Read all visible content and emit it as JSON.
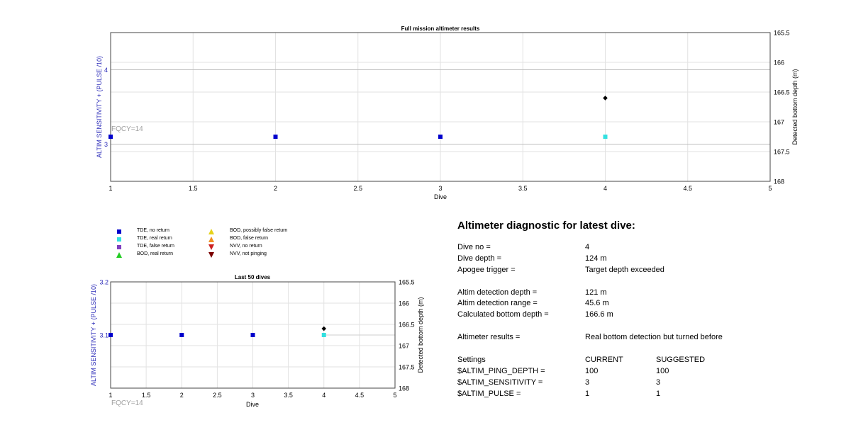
{
  "main_chart": {
    "title": "Full mission altimeter results",
    "xlabel": "Dive",
    "ylabel_left": "ALTIM SENSITIVITY + (PULSE /10)",
    "ylabel_right": "Detected bottom depth (m)",
    "note": "FQCY=14"
  },
  "small_chart": {
    "title": "Last 50 dives",
    "xlabel": "Dive",
    "ylabel_left": "ALTIM SENSITIVITY + (PULSE /10)",
    "ylabel_right": "Detected bottom depth (m)",
    "note": "FQCY=14"
  },
  "legend": {
    "items": [
      {
        "label": "TDE, no return",
        "marker": "square",
        "color": "#0000cc"
      },
      {
        "label": "TDE, real return",
        "marker": "square",
        "color": "#33e0e0"
      },
      {
        "label": "TDE, false return",
        "marker": "square",
        "color": "#7f3fbf"
      },
      {
        "label": "BOD, real return",
        "marker": "triangle-up",
        "color": "#22cc22"
      },
      {
        "label": "BOD, possibly false return",
        "marker": "triangle-up",
        "color": "#e6d21a"
      },
      {
        "label": "BOD, false return",
        "marker": "triangle-up",
        "color": "#f09020"
      },
      {
        "label": "NVV, no return",
        "marker": "triangle-down",
        "color": "#cc2020"
      },
      {
        "label": "NVV, not pinging",
        "marker": "triangle-down",
        "color": "#7a0000"
      }
    ]
  },
  "diagnostic": {
    "title": "Altimeter diagnostic for latest dive:",
    "dive_no": {
      "label": "Dive no =",
      "value": "4"
    },
    "dive_depth": {
      "label": "Dive depth =",
      "value": "124 m"
    },
    "apogee": {
      "label": "Apogee trigger =",
      "value": "Target depth exceeded"
    },
    "det_depth": {
      "label": "Altim detection depth =",
      "value": "121 m"
    },
    "det_range": {
      "label": "Altim detection range =",
      "value": "45.6 m"
    },
    "bottom": {
      "label": "Calculated bottom depth =",
      "value": "166.6 m"
    },
    "results": {
      "label": "Altimeter results =",
      "value": "Real bottom detection but turned before"
    },
    "settings": {
      "label": "Settings",
      "current": "CURRENT",
      "suggested": "SUGGESTED"
    },
    "ping": {
      "label": "$ALTIM_PING_DEPTH =",
      "current": "100",
      "suggested": "100"
    },
    "sens": {
      "label": "$ALTIM_SENSITIVITY =",
      "current": "3",
      "suggested": "3"
    },
    "pulse": {
      "label": "$ALTIM_PULSE =",
      "current": "1",
      "suggested": "1"
    }
  },
  "colors": {
    "axis_left": "#2b2bb8",
    "note": "#a0a0a0",
    "grid": "#e2e2e2"
  },
  "chart_data": [
    {
      "type": "scatter",
      "title": "Full mission altimeter results",
      "xlabel": "Dive",
      "ylabel": "ALTIM SENSITIVITY + (PULSE /10)",
      "y2label": "Detected bottom depth (m)",
      "xlim": [
        1,
        5
      ],
      "xticks": [
        "1",
        "1.5",
        "2",
        "2.5",
        "3",
        "3.5",
        "4",
        "4.5",
        "5"
      ],
      "ylim": [
        2.5,
        4.5
      ],
      "yticks": [
        "3",
        "4"
      ],
      "y2lim": [
        165.5,
        168
      ],
      "y2ticks": [
        "165.5",
        "166",
        "166.5",
        "167",
        "167.5",
        "168"
      ],
      "y2_reversed": true,
      "grid": true,
      "series": [
        {
          "name": "TDE, no return",
          "color": "#0000cc",
          "marker": "square",
          "axis": "left",
          "points": [
            {
              "x": 1,
              "y": 3.1
            },
            {
              "x": 2,
              "y": 3.1
            },
            {
              "x": 3,
              "y": 3.1
            }
          ]
        },
        {
          "name": "TDE, real return",
          "color": "#33e0e0",
          "marker": "square",
          "axis": "left",
          "points": [
            {
              "x": 4,
              "y": 3.1
            }
          ]
        },
        {
          "color": "#000000",
          "marker": "diamond",
          "axis": "right",
          "points": [
            {
              "x": 4,
              "y": 166.6
            }
          ]
        }
      ],
      "reference_lines": [
        {
          "axis": "left",
          "y": 4,
          "color": "#bdbdbd"
        },
        {
          "axis": "left",
          "y": 3,
          "color": "#bdbdbd"
        }
      ],
      "annotation": "FQCY=14"
    },
    {
      "type": "scatter",
      "title": "Last 50 dives",
      "xlabel": "Dive",
      "ylabel": "ALTIM SENSITIVITY + (PULSE /10)",
      "y2label": "Detected bottom depth (m)",
      "xlim": [
        1,
        5
      ],
      "xticks": [
        "1",
        "1.5",
        "2",
        "2.5",
        "3",
        "3.5",
        "4",
        "4.5",
        "5"
      ],
      "ylim": [
        3,
        3.2
      ],
      "yticks": [
        "3.1",
        "3.2"
      ],
      "y2lim": [
        165.5,
        168
      ],
      "y2ticks": [
        "165.5",
        "166",
        "166.5",
        "167",
        "167.5",
        "168"
      ],
      "y2_reversed": true,
      "grid": true,
      "series": [
        {
          "name": "TDE, no return",
          "color": "#0000cc",
          "marker": "square",
          "axis": "left",
          "points": [
            {
              "x": 1,
              "y": 3.1
            },
            {
              "x": 2,
              "y": 3.1
            },
            {
              "x": 3,
              "y": 3.1
            }
          ]
        },
        {
          "name": "TDE, real return",
          "color": "#33e0e0",
          "marker": "square",
          "axis": "left",
          "points": [
            {
              "x": 4,
              "y": 3.1
            }
          ]
        },
        {
          "color": "#000000",
          "marker": "diamond",
          "axis": "right",
          "points": [
            {
              "x": 4,
              "y": 166.6
            }
          ]
        }
      ],
      "reference_lines": [
        {
          "axis": "left",
          "y": 3.1,
          "x_range": [
            4,
            5
          ],
          "color": "#cfcfcf"
        }
      ],
      "annotation": "FQCY=14"
    }
  ]
}
